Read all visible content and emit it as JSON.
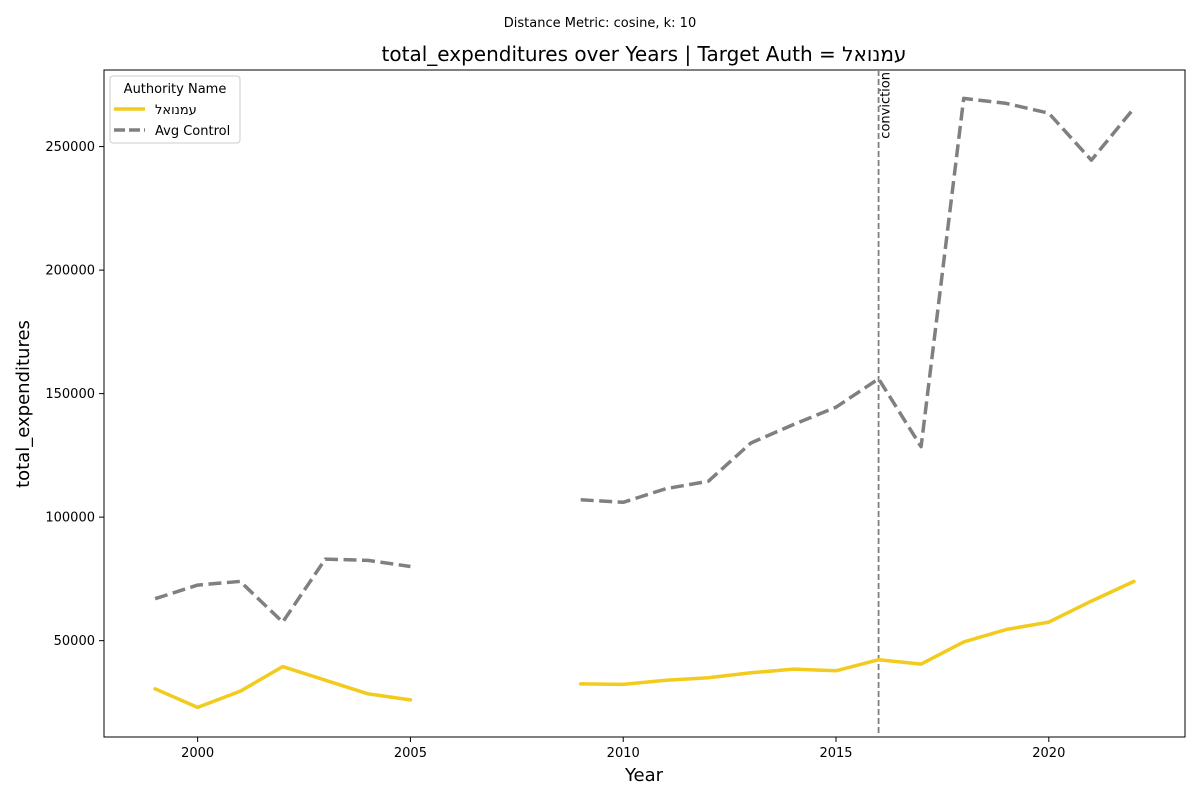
{
  "chart_data": {
    "type": "line",
    "subtitle": "Distance Metric: cosine, k: 10",
    "title": "total_expenditures over Years | Target Auth = עמנואל",
    "xlabel": "Year",
    "ylabel": "total_expenditures",
    "xlim": [
      1997.8,
      2023.2
    ],
    "ylim": [
      11000,
      281000
    ],
    "xticks": [
      "2000",
      "2005",
      "2010",
      "2015",
      "2020"
    ],
    "yticks": [
      "50000",
      "100000",
      "150000",
      "200000",
      "250000"
    ],
    "legend": {
      "title": "Authority Name",
      "placement": "top-left"
    },
    "annotation": {
      "x": 2016,
      "label": "conviction"
    },
    "series": [
      {
        "name": "עמנואל",
        "color": "#f2cb1d",
        "style": "solid",
        "segments": [
          [
            [
              1999,
              30500
            ],
            [
              2000,
              23000
            ],
            [
              2001,
              29500
            ],
            [
              2002,
              39500
            ],
            [
              2003,
              34000
            ],
            [
              2004,
              28500
            ],
            [
              2005,
              26000
            ]
          ],
          [
            [
              2009,
              32500
            ],
            [
              2010,
              32300
            ],
            [
              2011,
              34000
            ],
            [
              2012,
              35000
            ],
            [
              2013,
              37000
            ],
            [
              2014,
              38500
            ],
            [
              2015,
              37800
            ],
            [
              2016,
              42300
            ],
            [
              2017,
              40500
            ],
            [
              2018,
              49500
            ],
            [
              2019,
              54500
            ],
            [
              2020,
              57500
            ],
            [
              2021,
              66000
            ],
            [
              2022,
              74000
            ]
          ]
        ]
      },
      {
        "name": "Avg Control",
        "color": "#808080",
        "style": "dashed",
        "segments": [
          [
            [
              1999,
              67000
            ],
            [
              2000,
              72500
            ],
            [
              2001,
              74000
            ],
            [
              2002,
              57500
            ],
            [
              2003,
              83000
            ],
            [
              2004,
              82500
            ],
            [
              2005,
              80000
            ]
          ],
          [
            [
              2009,
              107000
            ],
            [
              2010,
              106000
            ],
            [
              2011,
              111500
            ],
            [
              2012,
              114500
            ],
            [
              2013,
              130000
            ],
            [
              2014,
              137500
            ],
            [
              2015,
              144500
            ],
            [
              2016,
              156000
            ],
            [
              2017,
              128500
            ],
            [
              2018,
              269500
            ],
            [
              2019,
              267500
            ],
            [
              2020,
              263500
            ],
            [
              2021,
              244500
            ],
            [
              2022,
              265500
            ]
          ]
        ]
      }
    ]
  }
}
